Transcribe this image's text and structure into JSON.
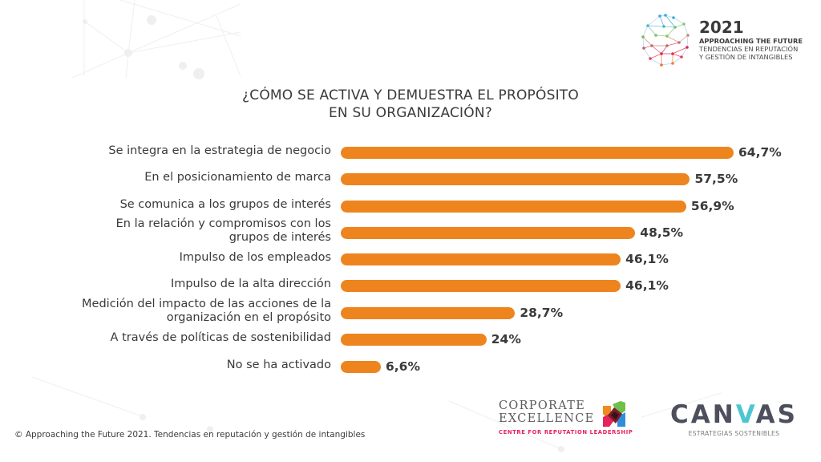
{
  "header": {
    "logo": {
      "icon": "network-globe-icon",
      "year": "2021",
      "line1": "APPROACHING THE FUTURE",
      "line2": "TENDENCIAS EN REPUTACIÓN",
      "line3": "Y GESTIÓN DE INTANGIBLES"
    }
  },
  "chart_data": {
    "type": "bar",
    "orientation": "horizontal",
    "title": "¿CÓMO SE ACTIVA Y DEMUESTRA EL PROPÓSITO EN SU ORGANIZACIÓN?",
    "title_lines": [
      "¿CÓMO SE ACTIVA Y DEMUESTRA EL PROPÓSITO",
      "EN SU ORGANIZACIÓN?"
    ],
    "xlabel": "",
    "ylabel": "",
    "xlim": [
      0,
      64.7
    ],
    "grid": false,
    "legend": "none",
    "bar_color": "#ee841e",
    "categories": [
      [
        "Se integra en la estrategia de negocio"
      ],
      [
        "En el posicionamiento de marca"
      ],
      [
        "Se comunica a los grupos de interés"
      ],
      [
        "En la relación y compromisos con los",
        "grupos de interés"
      ],
      [
        "Impulso de los empleados"
      ],
      [
        "Impulso de la alta dirección"
      ],
      [
        "Medición del impacto de las acciones de la",
        "organización en el propósito"
      ],
      [
        "A través de políticas de sostenibilidad"
      ],
      [
        "No se ha activado"
      ]
    ],
    "values": [
      64.7,
      57.5,
      56.9,
      48.5,
      46.1,
      46.1,
      28.7,
      24,
      6.6
    ],
    "value_labels": [
      "64,7%",
      "57,5%",
      "56,9%",
      "48,5%",
      "46,1%",
      "46,1%",
      "28,7%",
      "24%",
      "6,6%"
    ]
  },
  "footer": {
    "copyright": "© Approaching the Future 2021. Tendencias en reputación y gestión de intangibles",
    "ce_logo": {
      "line1": "CORPORATE",
      "line2": "EXCELLENCE",
      "tagline": "CENTRE FOR REPUTATION LEADERSHIP",
      "tagline_color": "#e4245b"
    },
    "canvas_logo": {
      "word_start": "CAN",
      "word_accent": "V",
      "word_end": "AS",
      "tagline": "ESTRATEGIAS SOSTENIBLES",
      "accent_color": "#4dc6d3"
    }
  }
}
